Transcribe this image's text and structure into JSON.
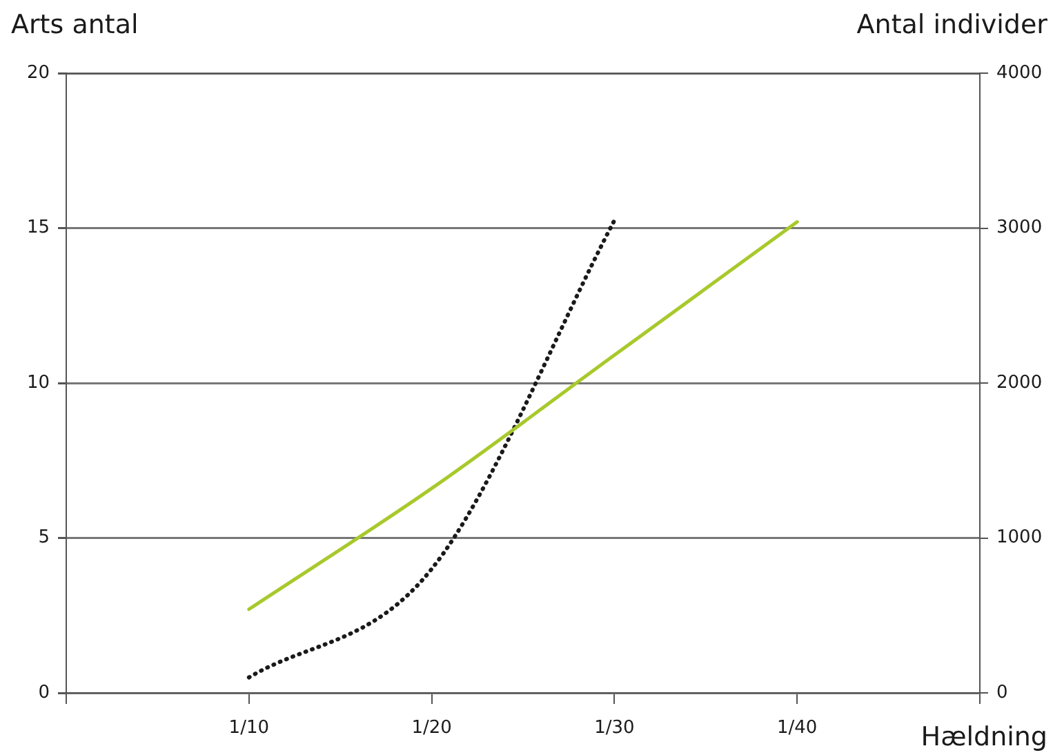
{
  "chart_data": {
    "type": "line",
    "ylabel": "Arts antal",
    "y2label": "Antal individer",
    "xlabel": "Hældning",
    "categories": [
      null,
      "1/10",
      "1/20",
      "1/30",
      "1/40",
      null
    ],
    "ylim": [
      0,
      20
    ],
    "yticks": [
      0,
      5,
      10,
      15,
      20
    ],
    "y2lim": [
      0,
      4000
    ],
    "y2ticks": [
      0,
      1000,
      2000,
      3000,
      4000
    ],
    "grid": "y",
    "legend": false,
    "marker": "none",
    "series": [
      {
        "color": "#a8c92c",
        "line_style": "solid",
        "values": [
          null,
          2.7,
          6.6,
          10.9,
          15.2,
          null
        ]
      },
      {
        "color": "#1a1a1a",
        "line_style": "dotted",
        "axis": "y2",
        "values": [
          null,
          100,
          800,
          3050,
          null,
          null
        ]
      }
    ]
  }
}
